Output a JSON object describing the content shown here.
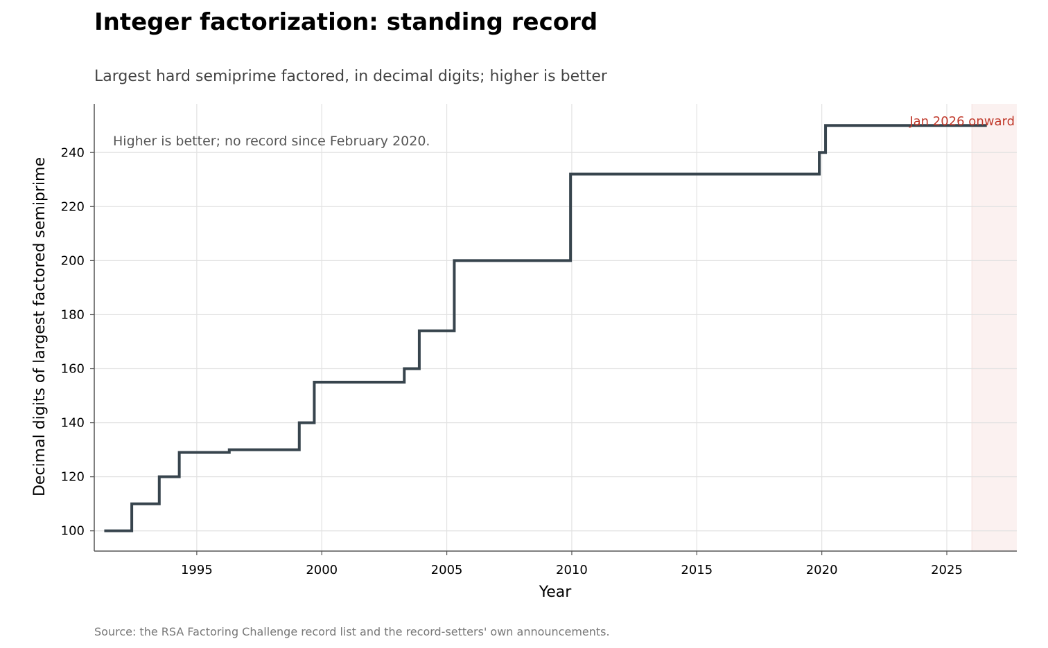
{
  "chart_data": {
    "type": "line",
    "step": "post",
    "title": "Integer factorization: standing record",
    "subtitle": "Largest hard semiprime factored, in decimal digits; higher is better",
    "xlabel": "Year",
    "ylabel": "Decimal digits of largest factored semiprime",
    "xlim": [
      1990.9,
      2027.8
    ],
    "ylim": [
      92.5,
      258
    ],
    "xticks": [
      1995,
      2000,
      2005,
      2010,
      2015,
      2020,
      2025
    ],
    "yticks": [
      100,
      120,
      140,
      160,
      180,
      200,
      220,
      240
    ],
    "grid": true,
    "series": [
      {
        "color": "#37444d",
        "points": [
          {
            "x": 1991.3,
            "y": 100
          },
          {
            "x": 1992.4,
            "y": 110
          },
          {
            "x": 1993.5,
            "y": 120
          },
          {
            "x": 1994.3,
            "y": 129
          },
          {
            "x": 1996.3,
            "y": 130
          },
          {
            "x": 1999.1,
            "y": 140
          },
          {
            "x": 1999.7,
            "y": 155
          },
          {
            "x": 2003.3,
            "y": 160
          },
          {
            "x": 2003.9,
            "y": 174
          },
          {
            "x": 2005.3,
            "y": 200
          },
          {
            "x": 2009.95,
            "y": 232
          },
          {
            "x": 2019.9,
            "y": 240
          },
          {
            "x": 2020.15,
            "y": 250
          },
          {
            "x": 2026.6,
            "y": 250
          }
        ]
      }
    ],
    "shaded_region": {
      "x_start": 2026.0,
      "x_end": 2027.8,
      "label": "Jan 2026 onward",
      "color": "#c0392b"
    },
    "annotations": [
      {
        "text": "Higher is better; no record since February 2020."
      }
    ],
    "source": "Source: the RSA Factoring Challenge record list and the record-setters' own announcements."
  }
}
